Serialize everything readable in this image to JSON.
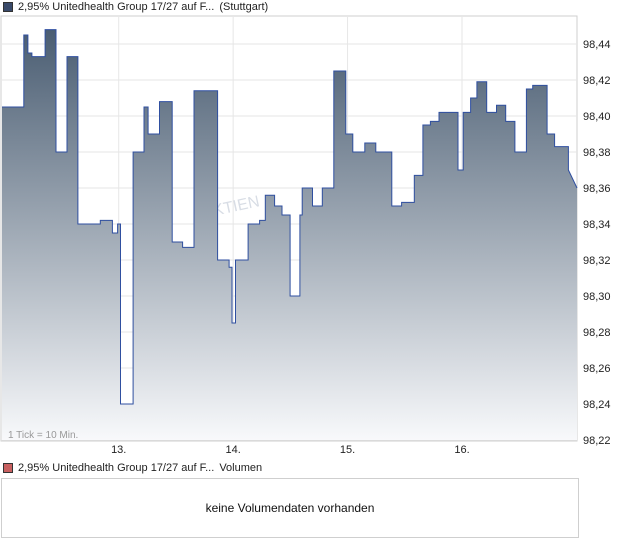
{
  "header": {
    "series_label": "2,95% Unitedhealth Group 17/27 auf F...",
    "exchange": "(Stuttgart)",
    "swatch_color": "#3a4a6a"
  },
  "chart_data": {
    "type": "area",
    "title": "2,95% Unitedhealth Group 17/27 auf F...",
    "subtitle": "(Stuttgart)",
    "x_ticks": [
      "13.",
      "14.",
      "15.",
      "16."
    ],
    "y_ticks": [
      "98,44",
      "98,42",
      "98,40",
      "98,38",
      "98,36",
      "98,34",
      "98,32",
      "98,30",
      "98,28",
      "98,26",
      "98,24",
      "98,22"
    ],
    "ylim": [
      98.22,
      98.455
    ],
    "tick_note": "1 Tick = 10 Min.",
    "grid": true,
    "watermark": "AKTIEN",
    "line_color": "#2f4fa0",
    "fill_top": "#4a5d72",
    "fill_bottom": "#f8f9fb",
    "x_range": [
      0,
      100
    ],
    "points": [
      [
        0,
        98.405
      ],
      [
        3.8,
        98.405
      ],
      [
        3.8,
        98.445
      ],
      [
        4.5,
        98.445
      ],
      [
        4.5,
        98.435
      ],
      [
        5.2,
        98.435
      ],
      [
        5.2,
        98.433
      ],
      [
        7.5,
        98.433
      ],
      [
        7.5,
        98.448
      ],
      [
        9.4,
        98.448
      ],
      [
        9.4,
        98.38
      ],
      [
        11.3,
        98.38
      ],
      [
        11.3,
        98.433
      ],
      [
        13.2,
        98.433
      ],
      [
        13.2,
        98.34
      ],
      [
        17.1,
        98.34
      ],
      [
        17.1,
        98.342
      ],
      [
        19.2,
        98.342
      ],
      [
        19.2,
        98.335
      ],
      [
        20.1,
        98.335
      ],
      [
        20.1,
        98.34
      ],
      [
        20.6,
        98.34
      ],
      [
        20.6,
        98.24
      ],
      [
        22.8,
        98.24
      ],
      [
        22.8,
        98.38
      ],
      [
        24.7,
        98.38
      ],
      [
        24.7,
        98.405
      ],
      [
        25.4,
        98.405
      ],
      [
        25.4,
        98.39
      ],
      [
        27.4,
        98.39
      ],
      [
        27.4,
        98.408
      ],
      [
        29.6,
        98.408
      ],
      [
        29.6,
        98.33
      ],
      [
        31.4,
        98.33
      ],
      [
        31.4,
        98.327
      ],
      [
        33.4,
        98.327
      ],
      [
        33.4,
        98.414
      ],
      [
        37.5,
        98.414
      ],
      [
        37.5,
        98.32
      ],
      [
        39.5,
        98.32
      ],
      [
        39.5,
        98.316
      ],
      [
        40.0,
        98.316
      ],
      [
        40.0,
        98.285
      ],
      [
        40.6,
        98.285
      ],
      [
        40.6,
        98.32
      ],
      [
        42.8,
        98.32
      ],
      [
        42.8,
        98.34
      ],
      [
        44.8,
        98.34
      ],
      [
        44.8,
        98.342
      ],
      [
        45.8,
        98.342
      ],
      [
        45.8,
        98.356
      ],
      [
        47.4,
        98.356
      ],
      [
        47.4,
        98.35
      ],
      [
        48.7,
        98.35
      ],
      [
        48.7,
        98.345
      ],
      [
        50.1,
        98.345
      ],
      [
        50.1,
        98.3
      ],
      [
        51.8,
        98.3
      ],
      [
        51.8,
        98.345
      ],
      [
        52.2,
        98.345
      ],
      [
        52.2,
        98.36
      ],
      [
        54.0,
        98.36
      ],
      [
        54.0,
        98.35
      ],
      [
        55.7,
        98.35
      ],
      [
        55.7,
        98.36
      ],
      [
        57.7,
        98.36
      ],
      [
        57.7,
        98.425
      ],
      [
        59.8,
        98.425
      ],
      [
        59.8,
        98.39
      ],
      [
        61.0,
        98.39
      ],
      [
        61.0,
        98.38
      ],
      [
        63.1,
        98.38
      ],
      [
        63.1,
        98.385
      ],
      [
        65.0,
        98.385
      ],
      [
        65.0,
        98.38
      ],
      [
        67.8,
        98.38
      ],
      [
        67.8,
        98.35
      ],
      [
        69.5,
        98.35
      ],
      [
        69.5,
        98.352
      ],
      [
        71.7,
        98.352
      ],
      [
        71.7,
        98.367
      ],
      [
        73.2,
        98.367
      ],
      [
        73.2,
        98.395
      ],
      [
        74.5,
        98.395
      ],
      [
        74.5,
        98.397
      ],
      [
        76.0,
        98.397
      ],
      [
        76.0,
        98.402
      ],
      [
        79.3,
        98.402
      ],
      [
        79.3,
        98.37
      ],
      [
        80.2,
        98.37
      ],
      [
        80.2,
        98.402
      ],
      [
        81.5,
        98.402
      ],
      [
        81.5,
        98.41
      ],
      [
        82.6,
        98.41
      ],
      [
        82.6,
        98.419
      ],
      [
        84.3,
        98.419
      ],
      [
        84.3,
        98.402
      ],
      [
        86.0,
        98.402
      ],
      [
        86.0,
        98.406
      ],
      [
        87.6,
        98.406
      ],
      [
        87.6,
        98.397
      ],
      [
        89.2,
        98.397
      ],
      [
        89.2,
        98.38
      ],
      [
        91.2,
        98.38
      ],
      [
        91.2,
        98.415
      ],
      [
        92.3,
        98.415
      ],
      [
        92.3,
        98.417
      ],
      [
        94.8,
        98.417
      ],
      [
        94.8,
        98.39
      ],
      [
        96.1,
        98.39
      ],
      [
        96.1,
        98.383
      ],
      [
        98.5,
        98.383
      ],
      [
        98.5,
        98.37
      ],
      [
        100,
        98.36
      ]
    ],
    "x_tick_positions": [
      20.3,
      40.2,
      60.1,
      80.0
    ]
  },
  "volume_panel": {
    "series_label": "2,95% Unitedhealth Group 17/27 auf F...",
    "kind": "Volumen",
    "swatch_color": "#c86060",
    "message": "keine Volumendaten vorhanden"
  }
}
